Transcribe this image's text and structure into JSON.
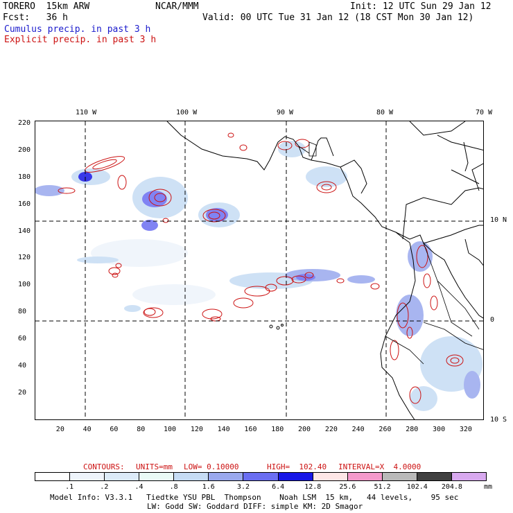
{
  "header": {
    "model_name": "TORERO  15km ARW",
    "org": "NCAR/MMM",
    "init": "Init: 12 UTC Sun 29 Jan 12",
    "fcst": "Fcst:   36 h",
    "valid": "Valid: 00 UTC Tue 31 Jan 12 (18 CST Mon 30 Jan 12)",
    "line_cumulus": "Cumulus precip. in past 3 h",
    "line_explicit": "Explicit precip. in past 3 h"
  },
  "colors": {
    "cumulus": "#1a1acc",
    "explicit": "#cc1111",
    "coast": "#000000"
  },
  "axes": {
    "top_lon_labels": [
      "110 W",
      "100 W",
      "90 W",
      "80 W",
      "70 W"
    ],
    "right_lat_labels": [
      "10 N",
      "0",
      "10 S"
    ],
    "left_y_ticks": [
      "220",
      "200",
      "180",
      "160",
      "140",
      "120",
      "100",
      "80",
      "60",
      "40",
      "20"
    ],
    "bottom_x_ticks": [
      "20",
      "40",
      "60",
      "80",
      "100",
      "120",
      "140",
      "160",
      "180",
      "200",
      "220",
      "240",
      "260",
      "280",
      "300",
      "320"
    ],
    "y_range": [
      0,
      222
    ],
    "x_range": [
      0,
      334
    ]
  },
  "contours_line": {
    "label": "CONTOURS:",
    "units": "UNITS=mm",
    "low": "LOW= 0.10000",
    "high": "HIGH=  102.40",
    "interval": "INTERVAL=X  4.0000"
  },
  "legend": {
    "values": [
      ".1",
      ".2",
      ".4",
      ".8",
      "1.6",
      "3.2",
      "6.4",
      "12.8",
      "25.6",
      "51.2",
      "102.4",
      "204.8"
    ],
    "unit": "mm",
    "colors": [
      "#ffffff",
      "#eef4fb",
      "#dcebf8",
      "#eafaf6",
      "#c6dcf4",
      "#9aa9ee",
      "#6a6ef2",
      "#1616e6",
      "#fde6e6",
      "#f49acb",
      "#b9b9b9",
      "#404040",
      "#d8a9ef"
    ]
  },
  "footer": {
    "line1": "Model Info: V3.3.1   Tiedtke YSU PBL  Thompson    Noah LSM  15 km,   44 levels,    95 sec",
    "line2": "LW: Godd SW: Goddard DIFF: simple KM: 2D Smagor"
  }
}
